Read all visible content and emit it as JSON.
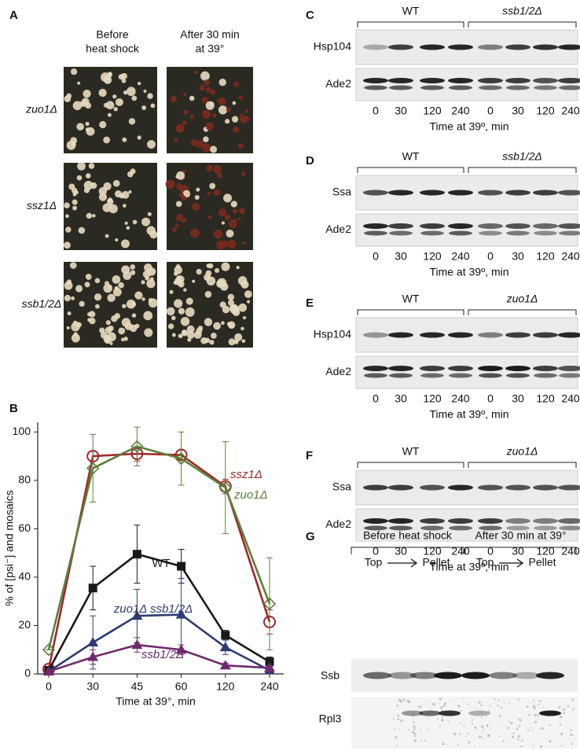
{
  "panel_a": {
    "letter": "A",
    "columns": [
      [
        "Before",
        "heat shock"
      ],
      [
        "After 30 min",
        "at 39°"
      ]
    ],
    "rows": [
      "zuo1Δ",
      "ssz1Δ",
      "ssb1/2Δ"
    ]
  },
  "chart_data": {
    "letter": "B",
    "type": "line",
    "xlabel": "Time at 39°, min",
    "ylabel": "% of [psi⁻] and mosaics",
    "categories": [
      0,
      30,
      45,
      60,
      120,
      240
    ],
    "ylim": [
      0,
      104
    ],
    "yticks": [
      0,
      20,
      40,
      60,
      80,
      100
    ],
    "series": [
      {
        "name": "ssz1Δ",
        "color": "#a0282a",
        "marker": "circle-open",
        "values": [
          2,
          90,
          91,
          90.5,
          77.5,
          21.5
        ],
        "errors": [
          0,
          2,
          3,
          2,
          3,
          5
        ]
      },
      {
        "name": "zuo1Δ",
        "color": "#5b7f3a",
        "marker": "diamond-open",
        "values": [
          10,
          85,
          94,
          89,
          77,
          29
        ],
        "errors": [
          0,
          14,
          8,
          11,
          19,
          19
        ]
      },
      {
        "name": "WT",
        "color": "#1a1a1a",
        "marker": "square",
        "values": [
          1.5,
          35.5,
          49.5,
          44.5,
          16,
          5
        ],
        "errors": [
          0,
          9,
          12,
          7,
          2,
          2
        ]
      },
      {
        "name": "zuo1Δ ssb1/2Δ",
        "color": "#2f3b73",
        "marker": "triangle",
        "values": [
          1,
          13,
          24,
          24.5,
          11,
          1.5
        ],
        "errors": [
          0,
          11,
          11,
          15,
          3,
          1
        ]
      },
      {
        "name": "ssb1/2Δ",
        "color": "#6e2c6c",
        "marker": "triangle",
        "values": [
          1,
          7,
          12,
          10,
          3.5,
          2.5
        ],
        "errors": [
          0,
          3,
          3,
          2,
          1,
          1
        ]
      }
    ]
  },
  "blots": [
    {
      "letter": "C",
      "groups": [
        "WT",
        "ssb1/2Δ"
      ],
      "rows": [
        "Hsp104",
        "Ade2"
      ],
      "lanes": [
        0,
        30,
        120,
        240,
        0,
        30,
        120,
        240
      ],
      "xlabel": "Time at 39º, min"
    },
    {
      "letter": "D",
      "groups": [
        "WT",
        "ssb1/2Δ"
      ],
      "rows": [
        "Ssa",
        "Ade2"
      ],
      "lanes": [
        0,
        30,
        120,
        240,
        0,
        30,
        120,
        240
      ],
      "xlabel": "Time at 39º, min"
    },
    {
      "letter": "E",
      "groups": [
        "WT",
        "zuo1Δ"
      ],
      "rows": [
        "Hsp104",
        "Ade2"
      ],
      "lanes": [
        0,
        30,
        120,
        240,
        0,
        30,
        120,
        240
      ],
      "xlabel": "Time at 39º, min"
    },
    {
      "letter": "F",
      "groups": [
        "WT",
        "zuo1Δ"
      ],
      "rows": [
        "Ssa",
        "Ade2"
      ],
      "lanes": [
        0,
        30,
        120,
        240,
        0,
        30,
        120,
        240
      ],
      "xlabel": "Time at 39º, min"
    }
  ],
  "panel_g": {
    "letter": "G",
    "groups": [
      "Before heat shock",
      "After 30 min at 39°"
    ],
    "fractions": [
      [
        "Top",
        "Pellet"
      ],
      [
        "Top",
        "Pellet"
      ]
    ],
    "rows": [
      "Ssb",
      "Rpl3"
    ]
  }
}
